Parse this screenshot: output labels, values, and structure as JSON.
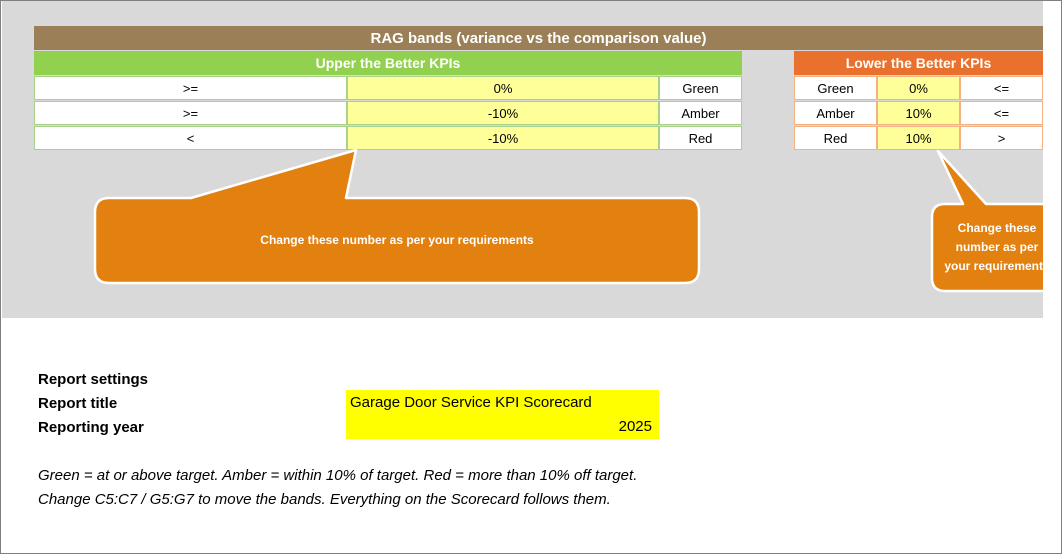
{
  "title": "RAG bands (variance vs the comparison value)",
  "upper": {
    "header": "Upper the Better KPIs",
    "rows": [
      {
        "op": ">=",
        "value": "0%",
        "band": "Green"
      },
      {
        "op": ">=",
        "value": "-10%",
        "band": "Amber"
      },
      {
        "op": "<",
        "value": "-10%",
        "band": "Red"
      }
    ]
  },
  "lower": {
    "header": "Lower the Better KPIs",
    "rows": [
      {
        "band": "Green",
        "value": "0%",
        "op": "<="
      },
      {
        "band": "Amber",
        "value": "10%",
        "op": "<="
      },
      {
        "band": "Red",
        "value": "10%",
        "op": ">"
      }
    ]
  },
  "callouts": {
    "upper_text": "Change these number as per your requirements",
    "lower_lines": [
      "Change these",
      "number as per",
      "your requirements"
    ]
  },
  "settings": {
    "heading": "Report settings",
    "title_label": "Report title",
    "title_value": "Garage Door Service KPI Scorecard",
    "year_label": "Reporting year",
    "year_value": "2025"
  },
  "notes": [
    "Green = at or above target. Amber = within 10% of target. Red = more than 10% off target.",
    "Change C5:C7 / G5:G7 to move the bands. Everything on the Scorecard follows them."
  ],
  "colors": {
    "title_bar": "#9b7f57",
    "upper_header": "#92d050",
    "lower_header": "#e9712d",
    "input_cell": "#ffff99",
    "callout": "#e28010",
    "setting_highlight": "#ffff00"
  }
}
